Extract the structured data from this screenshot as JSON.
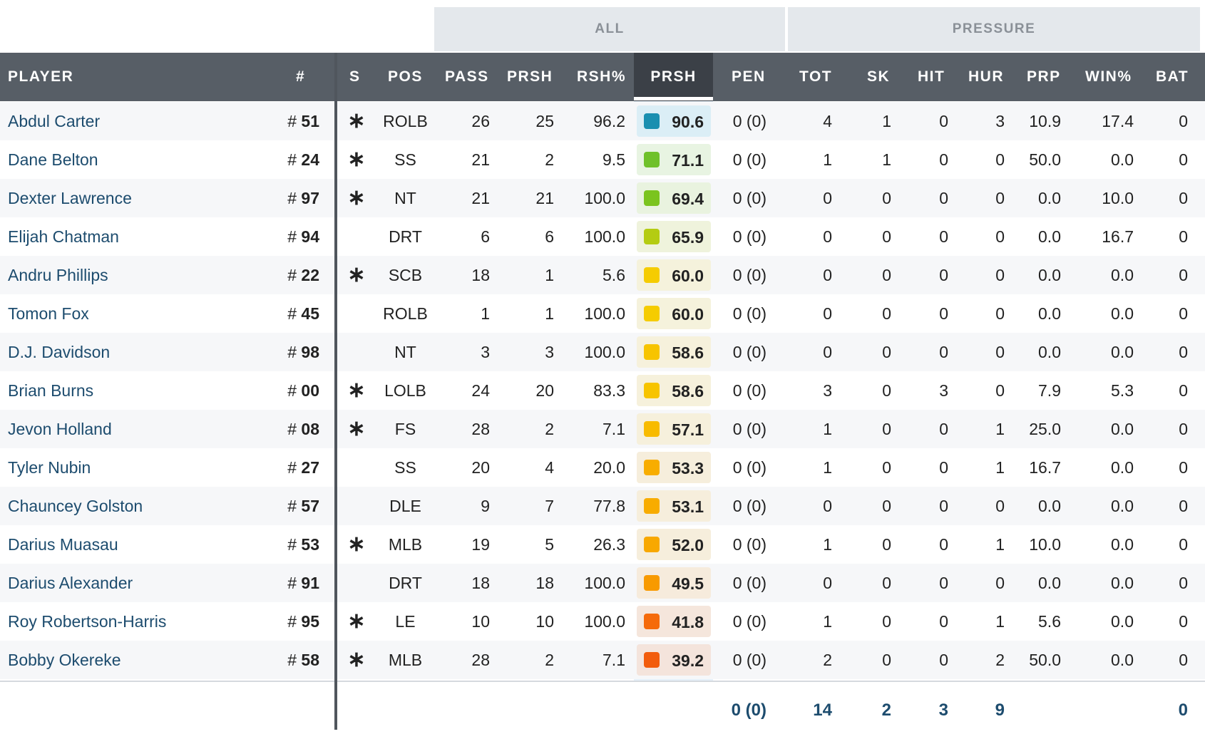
{
  "groups": {
    "all": "ALL",
    "pressure": "PRESSURE"
  },
  "columns": {
    "player": "PLAYER",
    "jersey": "#",
    "starter": "S",
    "pos": "POS",
    "pass": "PASS",
    "prsh": "PRSH",
    "rsh_pct": "RSH%",
    "prsh_grade": "PRSH",
    "pen": "PEN",
    "tot": "TOT",
    "sk": "SK",
    "hit": "HIT",
    "hur": "HUR",
    "prp": "PRP",
    "win_pct": "WIN%",
    "bat": "BAT"
  },
  "starter_mark": "∗",
  "rows": [
    {
      "name": "Abdul Carter",
      "jersey": "51",
      "starter": true,
      "pos": "ROLB",
      "pass": "26",
      "prsh": "25",
      "rsh_pct": "96.2",
      "grade": "90.6",
      "grade_color": "#1a8fb0",
      "grade_bg": "#dbeef6",
      "pen": "0 (0)",
      "tot": "4",
      "sk": "1",
      "hit": "0",
      "hur": "3",
      "prp": "10.9",
      "win_pct": "17.4",
      "bat": "0"
    },
    {
      "name": "Dane Belton",
      "jersey": "24",
      "starter": true,
      "pos": "SS",
      "pass": "21",
      "prsh": "2",
      "rsh_pct": "9.5",
      "grade": "71.1",
      "grade_color": "#6fc12a",
      "grade_bg": "#e8f4e2",
      "pen": "0 (0)",
      "tot": "1",
      "sk": "1",
      "hit": "0",
      "hur": "0",
      "prp": "50.0",
      "win_pct": "0.0",
      "bat": "0"
    },
    {
      "name": "Dexter Lawrence",
      "jersey": "97",
      "starter": true,
      "pos": "NT",
      "pass": "21",
      "prsh": "21",
      "rsh_pct": "100.0",
      "grade": "69.4",
      "grade_color": "#7bc41e",
      "grade_bg": "#e9f3df",
      "pen": "0 (0)",
      "tot": "0",
      "sk": "0",
      "hit": "0",
      "hur": "0",
      "prp": "0.0",
      "win_pct": "10.0",
      "bat": "0"
    },
    {
      "name": "Elijah Chatman",
      "jersey": "94",
      "starter": false,
      "pos": "DRT",
      "pass": "6",
      "prsh": "6",
      "rsh_pct": "100.0",
      "grade": "65.9",
      "grade_color": "#b4cc12",
      "grade_bg": "#eff3dc",
      "pen": "0 (0)",
      "tot": "0",
      "sk": "0",
      "hit": "0",
      "hur": "0",
      "prp": "0.0",
      "win_pct": "16.7",
      "bat": "0"
    },
    {
      "name": "Andru Phillips",
      "jersey": "22",
      "starter": true,
      "pos": "SCB",
      "pass": "18",
      "prsh": "1",
      "rsh_pct": "5.6",
      "grade": "60.0",
      "grade_color": "#f5cc00",
      "grade_bg": "#f5f2dc",
      "pen": "0 (0)",
      "tot": "0",
      "sk": "0",
      "hit": "0",
      "hur": "0",
      "prp": "0.0",
      "win_pct": "0.0",
      "bat": "0"
    },
    {
      "name": "Tomon Fox",
      "jersey": "45",
      "starter": false,
      "pos": "ROLB",
      "pass": "1",
      "prsh": "1",
      "rsh_pct": "100.0",
      "grade": "60.0",
      "grade_color": "#f5cc00",
      "grade_bg": "#f5f2dc",
      "pen": "0 (0)",
      "tot": "0",
      "sk": "0",
      "hit": "0",
      "hur": "0",
      "prp": "0.0",
      "win_pct": "0.0",
      "bat": "0"
    },
    {
      "name": "D.J. Davidson",
      "jersey": "98",
      "starter": false,
      "pos": "NT",
      "pass": "3",
      "prsh": "3",
      "rsh_pct": "100.0",
      "grade": "58.6",
      "grade_color": "#f7c400",
      "grade_bg": "#f6f1dc",
      "pen": "0 (0)",
      "tot": "0",
      "sk": "0",
      "hit": "0",
      "hur": "0",
      "prp": "0.0",
      "win_pct": "0.0",
      "bat": "0"
    },
    {
      "name": "Brian Burns",
      "jersey": "00",
      "starter": true,
      "pos": "LOLB",
      "pass": "24",
      "prsh": "20",
      "rsh_pct": "83.3",
      "grade": "58.6",
      "grade_color": "#f7c400",
      "grade_bg": "#f6f1dc",
      "pen": "0 (0)",
      "tot": "3",
      "sk": "0",
      "hit": "3",
      "hur": "0",
      "prp": "7.9",
      "win_pct": "5.3",
      "bat": "0"
    },
    {
      "name": "Jevon Holland",
      "jersey": "08",
      "starter": true,
      "pos": "FS",
      "pass": "28",
      "prsh": "2",
      "rsh_pct": "7.1",
      "grade": "57.1",
      "grade_color": "#f8bb00",
      "grade_bg": "#f6f0dc",
      "pen": "0 (0)",
      "tot": "1",
      "sk": "0",
      "hit": "0",
      "hur": "1",
      "prp": "25.0",
      "win_pct": "0.0",
      "bat": "0"
    },
    {
      "name": "Tyler Nubin",
      "jersey": "27",
      "starter": false,
      "pos": "SS",
      "pass": "20",
      "prsh": "4",
      "rsh_pct": "20.0",
      "grade": "53.3",
      "grade_color": "#f8ad00",
      "grade_bg": "#f6eedc",
      "pen": "0 (0)",
      "tot": "1",
      "sk": "0",
      "hit": "0",
      "hur": "1",
      "prp": "16.7",
      "win_pct": "0.0",
      "bat": "0"
    },
    {
      "name": "Chauncey Golston",
      "jersey": "57",
      "starter": false,
      "pos": "DLE",
      "pass": "9",
      "prsh": "7",
      "rsh_pct": "77.8",
      "grade": "53.1",
      "grade_color": "#f8ac00",
      "grade_bg": "#f6eedc",
      "pen": "0 (0)",
      "tot": "0",
      "sk": "0",
      "hit": "0",
      "hur": "0",
      "prp": "0.0",
      "win_pct": "0.0",
      "bat": "0"
    },
    {
      "name": "Darius Muasau",
      "jersey": "53",
      "starter": true,
      "pos": "MLB",
      "pass": "19",
      "prsh": "5",
      "rsh_pct": "26.3",
      "grade": "52.0",
      "grade_color": "#f8a800",
      "grade_bg": "#f6eedc",
      "pen": "0 (0)",
      "tot": "1",
      "sk": "0",
      "hit": "0",
      "hur": "1",
      "prp": "10.0",
      "win_pct": "0.0",
      "bat": "0"
    },
    {
      "name": "Darius Alexander",
      "jersey": "91",
      "starter": false,
      "pos": "DRT",
      "pass": "18",
      "prsh": "18",
      "rsh_pct": "100.0",
      "grade": "49.5",
      "grade_color": "#f89a00",
      "grade_bg": "#f6ebdc",
      "pen": "0 (0)",
      "tot": "0",
      "sk": "0",
      "hit": "0",
      "hur": "0",
      "prp": "0.0",
      "win_pct": "0.0",
      "bat": "0"
    },
    {
      "name": "Roy Robertson-Harris",
      "jersey": "95",
      "starter": true,
      "pos": "LE",
      "pass": "10",
      "prsh": "10",
      "rsh_pct": "100.0",
      "grade": "41.8",
      "grade_color": "#f56a0a",
      "grade_bg": "#f5e6dc",
      "pen": "0 (0)",
      "tot": "1",
      "sk": "0",
      "hit": "0",
      "hur": "1",
      "prp": "5.6",
      "win_pct": "0.0",
      "bat": "0"
    },
    {
      "name": "Bobby Okereke",
      "jersey": "58",
      "starter": true,
      "pos": "MLB",
      "pass": "28",
      "prsh": "2",
      "rsh_pct": "7.1",
      "grade": "39.2",
      "grade_color": "#f25c0c",
      "grade_bg": "#f4e4dc",
      "pen": "0 (0)",
      "tot": "2",
      "sk": "0",
      "hit": "0",
      "hur": "2",
      "prp": "50.0",
      "win_pct": "0.0",
      "bat": "0"
    }
  ],
  "totals": {
    "pen": "0 (0)",
    "tot": "14",
    "sk": "2",
    "hit": "3",
    "hur": "9",
    "bat": "0"
  }
}
